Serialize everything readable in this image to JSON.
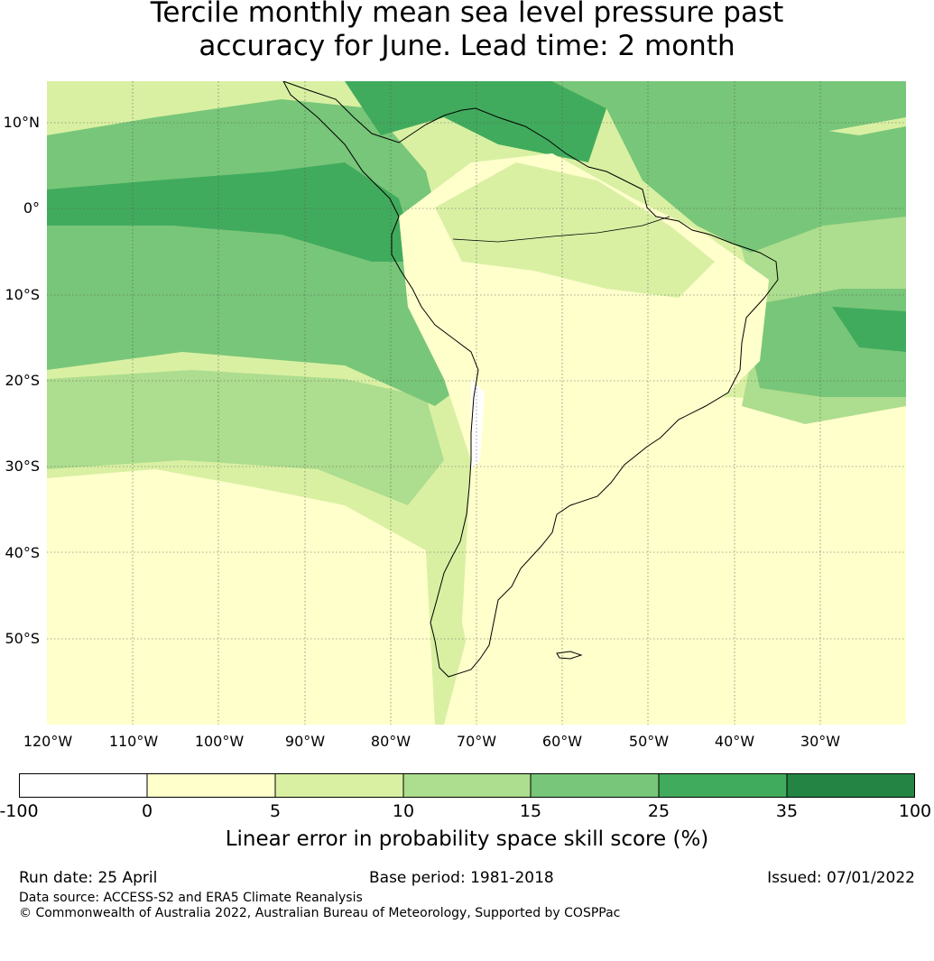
{
  "title": {
    "line1": "Tercile monthly mean sea level pressure past",
    "line2": "accuracy for June. Lead time: 2 month"
  },
  "map": {
    "lat_labels": [
      "10°N",
      "0°",
      "10°S",
      "20°S",
      "30°S",
      "40°S",
      "50°S"
    ],
    "lon_labels": [
      "120°W",
      "110°W",
      "100°W",
      "90°W",
      "80°W",
      "70°W",
      "60°W",
      "50°W",
      "40°W",
      "30°W"
    ],
    "land": "South America coastline",
    "colors": {
      "neg": "#ffffff",
      "c0_5": "#ffffcc",
      "c5_10": "#d9f0a3",
      "c10_15": "#addd8e",
      "c15_25": "#78c679",
      "c25_35": "#41ab5d",
      "c35_100": "#238443"
    }
  },
  "colorbar": {
    "ticks": [
      "-100",
      "0",
      "5",
      "10",
      "15",
      "25",
      "35",
      "100"
    ],
    "colors": [
      "#ffffff",
      "#ffffcc",
      "#d9f0a3",
      "#addd8e",
      "#78c679",
      "#41ab5d",
      "#238443"
    ],
    "label": "Linear error in probability space skill score (%)"
  },
  "footer": {
    "run_date": "Run date: 25 April",
    "base_period": "Base period: 1981-2018",
    "issued": "Issued: 07/01/2022",
    "data_source": "Data source: ACCESS-S2 and ERA5 Climate Reanalysis",
    "copyright": "© Commonwealth of Australia 2022, Australian Bureau of Meteorology, Supported by COSPPac"
  }
}
